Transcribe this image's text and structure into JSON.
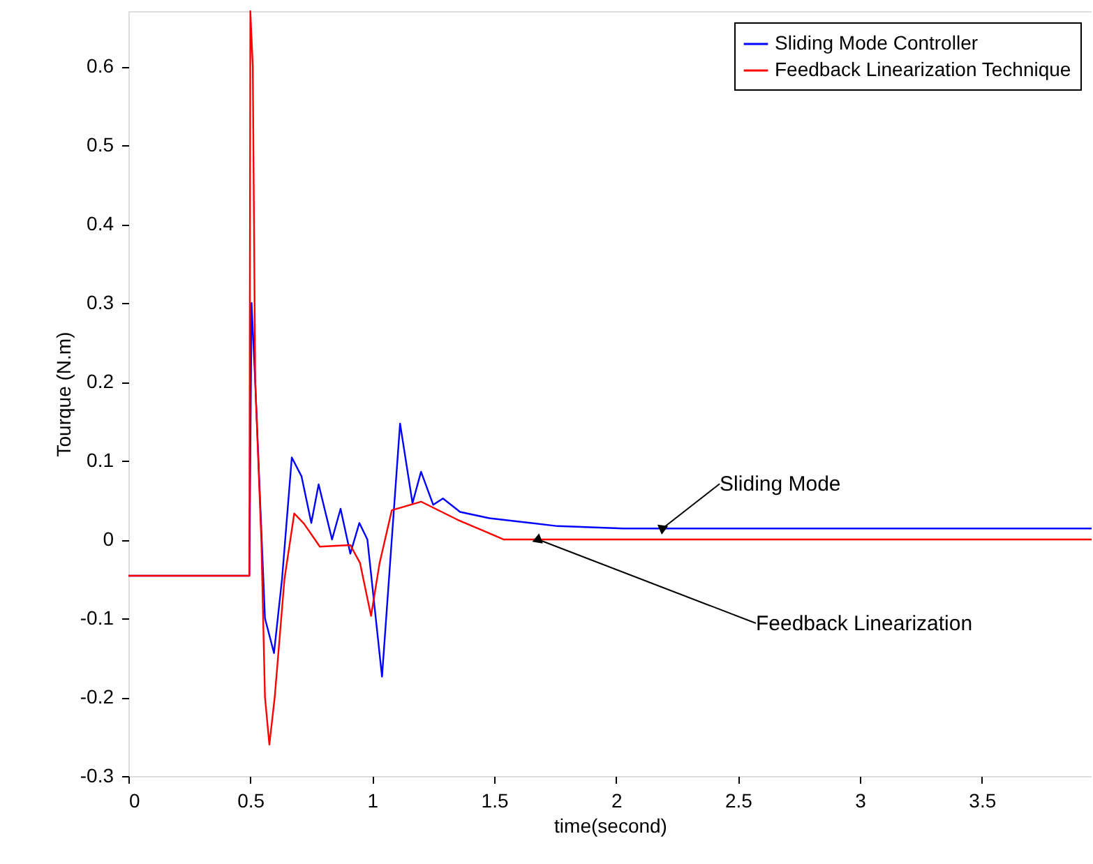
{
  "chart_data": {
    "type": "line",
    "xlabel": "time(second)",
    "ylabel": "Tourque (N.m)",
    "xlim": [
      0,
      3.95
    ],
    "xticks": [
      0,
      0.5,
      1,
      1.5,
      2,
      2.5,
      3,
      3.5
    ],
    "ylim": [
      -0.3,
      0.67
    ],
    "yticks": [
      -0.3,
      -0.2,
      -0.1,
      0,
      0.1,
      0.2,
      0.3,
      0.4,
      0.5,
      0.6
    ],
    "grid": false,
    "legend": "top right",
    "line_style": "solid",
    "marker": "none",
    "series": [
      {
        "name": "Sliding Mode  Controller",
        "color": "#0000ff",
        "x": [
          0,
          0.496,
          0.505,
          0.52,
          0.54,
          0.56,
          0.597,
          0.63,
          0.67,
          0.71,
          0.75,
          0.78,
          0.835,
          0.87,
          0.91,
          0.947,
          0.98,
          1.04,
          1.08,
          1.114,
          1.165,
          1.2,
          1.25,
          1.29,
          1.36,
          1.48,
          1.76,
          2.03,
          3.95
        ],
        "values": [
          -0.046,
          -0.046,
          0.3,
          0.2,
          0.05,
          -0.1,
          -0.144,
          -0.05,
          0.104,
          0.08,
          0.021,
          0.07,
          0.0,
          0.039,
          -0.018,
          0.021,
          0.0,
          -0.174,
          0.0,
          0.147,
          0.046,
          0.086,
          0.044,
          0.052,
          0.035,
          0.027,
          0.017,
          0.014,
          0.014
        ]
      },
      {
        "name": "Feedback Linearization Technique",
        "color": "#ff0000",
        "x": [
          0,
          0.496,
          0.5,
          0.51,
          0.52,
          0.545,
          0.56,
          0.578,
          0.6,
          0.64,
          0.68,
          0.72,
          0.785,
          0.91,
          0.95,
          0.995,
          1.03,
          1.08,
          1.2,
          1.35,
          1.54,
          3.95
        ],
        "values": [
          -0.046,
          -0.046,
          0.67,
          0.6,
          0.2,
          0.0,
          -0.2,
          -0.26,
          -0.2,
          -0.05,
          0.033,
          0.02,
          -0.009,
          -0.007,
          -0.03,
          -0.097,
          -0.03,
          0.037,
          0.048,
          0.025,
          0.0,
          0.0
        ]
      }
    ],
    "annotations": [
      {
        "text": "Sliding Mode",
        "x": 2.19,
        "y": 0.014
      },
      {
        "text": "Feedback Linearization",
        "x": 1.68,
        "y": 0
      }
    ]
  }
}
